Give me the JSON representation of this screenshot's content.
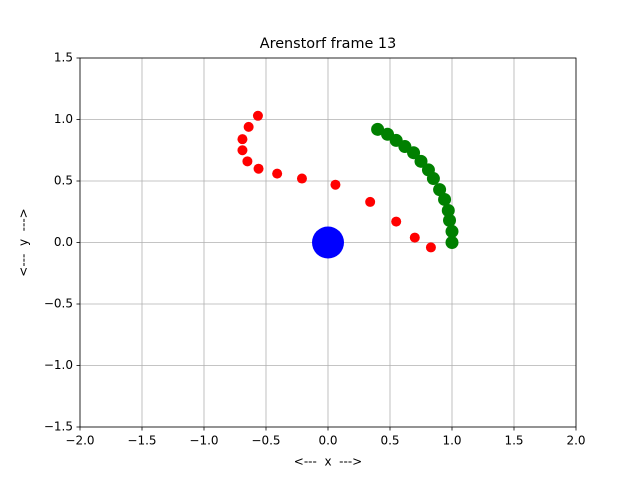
{
  "chart_data": {
    "type": "scatter",
    "title": "Arenstorf frame 13",
    "xlabel": "<---  x  --->",
    "ylabel": "<---  y  --->",
    "xlim": [
      -2,
      2
    ],
    "ylim": [
      -1.5,
      1.5
    ],
    "xticks": [
      {
        "value": -2,
        "label": "−2.0"
      },
      {
        "value": -1.5,
        "label": "−1.5"
      },
      {
        "value": -1,
        "label": "−1.0"
      },
      {
        "value": -0.5,
        "label": "−0.5"
      },
      {
        "value": 0,
        "label": "0.0"
      },
      {
        "value": 0.5,
        "label": "0.5"
      },
      {
        "value": 1,
        "label": "1.0"
      },
      {
        "value": 1.5,
        "label": "1.5"
      },
      {
        "value": 2,
        "label": "2.0"
      }
    ],
    "yticks": [
      {
        "value": -1.5,
        "label": "−1.5"
      },
      {
        "value": -1,
        "label": "−1.0"
      },
      {
        "value": -0.5,
        "label": "−0.5"
      },
      {
        "value": 0,
        "label": "0.0"
      },
      {
        "value": 0.5,
        "label": "0.5"
      },
      {
        "value": 1,
        "label": "1.0"
      },
      {
        "value": 1.5,
        "label": "1.5"
      }
    ],
    "grid": true,
    "series": [
      {
        "color": "#ff0000",
        "size": 5,
        "x": [
          -0.565,
          -0.64,
          -0.69,
          -0.69,
          -0.65,
          -0.56,
          -0.41,
          -0.21,
          0.06,
          0.34,
          0.55,
          0.7,
          0.83,
          1.0
        ],
        "values": [
          1.03,
          0.94,
          0.84,
          0.75,
          0.66,
          0.6,
          0.56,
          0.52,
          0.47,
          0.33,
          0.17,
          0.04,
          -0.04,
          0.0
        ]
      },
      {
        "color": "#008000",
        "size": 6.5,
        "x": [
          0.4,
          0.48,
          0.55,
          0.62,
          0.69,
          0.75,
          0.81,
          0.85,
          0.9,
          0.94,
          0.97,
          0.98,
          1.0,
          1.0
        ],
        "values": [
          0.92,
          0.88,
          0.83,
          0.78,
          0.73,
          0.66,
          0.59,
          0.52,
          0.43,
          0.35,
          0.26,
          0.18,
          0.09,
          0.0
        ]
      },
      {
        "color": "#0000ff",
        "size": 16,
        "x": [
          0
        ],
        "values": [
          0
        ]
      }
    ]
  }
}
